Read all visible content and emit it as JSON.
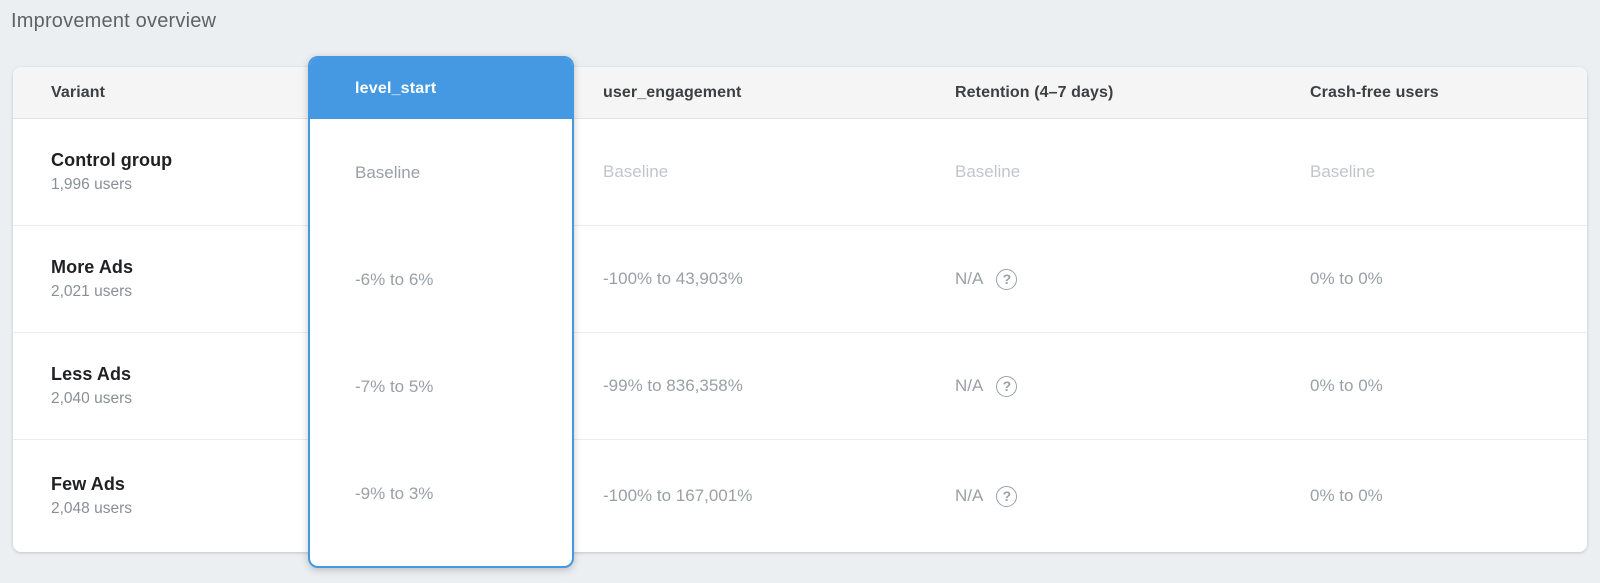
{
  "page": {
    "title": "Improvement overview"
  },
  "colors": {
    "accent_blue": "#4499e2",
    "background": "#eceff1",
    "card": "#ffffff",
    "header_bg": "#f5f5f5",
    "muted_value": "#9aa0a6",
    "baseline_value": "#c2c6ca"
  },
  "table": {
    "columns": [
      "Variant",
      "level_start",
      "user_engagement",
      "Retention (4–7 days)",
      "Crash-free users"
    ],
    "selected_column": "level_start",
    "rows": [
      {
        "variant": "Control group",
        "users": "1,996 users",
        "level_start": "Baseline",
        "user_engagement": "Baseline",
        "retention": "Baseline",
        "crash_free": "Baseline"
      },
      {
        "variant": "More Ads",
        "users": "2,021 users",
        "level_start": "-6% to 6%",
        "user_engagement": "-100% to 43,903%",
        "retention": "N/A",
        "crash_free": "0% to 0%"
      },
      {
        "variant": "Less Ads",
        "users": "2,040 users",
        "level_start": "-7% to 5%",
        "user_engagement": "-99% to 836,358%",
        "retention": "N/A",
        "crash_free": "0% to 0%"
      },
      {
        "variant": "Few Ads",
        "users": "2,048 users",
        "level_start": "-9% to 3%",
        "user_engagement": "-100% to 167,001%",
        "retention": "N/A",
        "crash_free": "0% to 0%"
      }
    ],
    "icons": {
      "help_glyph": "?"
    }
  }
}
